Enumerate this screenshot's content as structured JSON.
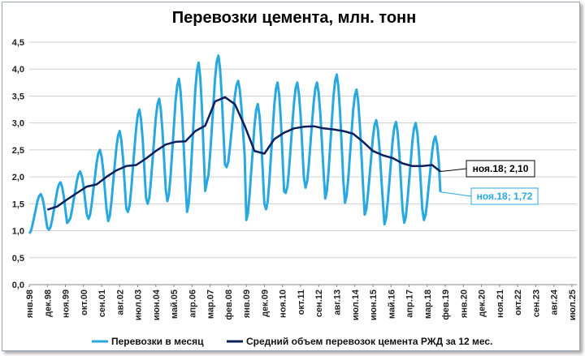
{
  "chart_data": {
    "type": "line",
    "title": "Перевозки цемента, млн. тонн",
    "ylim": [
      0,
      4.5
    ],
    "y_ticks": [
      "0,0",
      "0,5",
      "1,0",
      "1,5",
      "2,0",
      "2,5",
      "3,0",
      "3,5",
      "4,0",
      "4,5"
    ],
    "x_range": [
      "1998-01",
      "2025-10"
    ],
    "x_ticks": [
      "янв.98",
      "дек.98",
      "ноя.99",
      "окт.00",
      "сен.01",
      "авг.02",
      "июл.03",
      "июн.04",
      "май.05",
      "апр.06",
      "мар.07",
      "фев.08",
      "янв.09",
      "дек.09",
      "ноя.10",
      "окт.11",
      "сен.12",
      "авг.13",
      "июл.14",
      "июн.15",
      "май.16",
      "апр.17",
      "мар.18",
      "фев.19",
      "янв.20",
      "дек.20",
      "ноя.21",
      "окт.22",
      "сен.23",
      "авг.24",
      "июл.25"
    ],
    "grid": true,
    "legend_position": "bottom",
    "colors": {
      "monthly": "#29a8e0",
      "average": "#0b1f5c",
      "grid": "#d0d0d0"
    },
    "series": [
      {
        "name": "Перевозки в месяц",
        "monthly_peak_trough": {
          "1998": [
            1.68,
            0.95
          ],
          "1999": [
            1.9,
            1.02
          ],
          "2000": [
            2.1,
            1.18
          ],
          "2001": [
            2.5,
            1.22
          ],
          "2002": [
            2.85,
            1.18
          ],
          "2003": [
            3.25,
            1.35
          ],
          "2004": [
            3.45,
            1.5
          ],
          "2005": [
            3.82,
            1.55
          ],
          "2006": [
            4.12,
            1.35
          ],
          "2007": [
            4.25,
            1.9
          ],
          "2008": [
            3.78,
            2.18
          ],
          "2009": [
            3.35,
            1.2
          ],
          "2010": [
            3.75,
            1.4
          ],
          "2011": [
            3.75,
            1.7
          ],
          "2012": [
            3.75,
            1.8
          ],
          "2013": [
            3.9,
            1.6
          ],
          "2014": [
            3.62,
            1.52
          ],
          "2015": [
            3.05,
            1.3
          ],
          "2016": [
            3.02,
            1.12
          ],
          "2017": [
            3.0,
            1.15
          ],
          "2018": [
            2.75,
            1.2
          ]
        },
        "last": {
          "date": "2018-11",
          "value": 1.72
        }
      },
      {
        "name": "Средний объем перевозок цемента РЖД за 12 мес.",
        "x": [
          "1998-12",
          "1999-06",
          "1999-12",
          "2000-06",
          "2000-12",
          "2001-06",
          "2001-12",
          "2002-06",
          "2002-12",
          "2003-06",
          "2003-12",
          "2004-06",
          "2004-12",
          "2005-06",
          "2005-12",
          "2006-06",
          "2006-12",
          "2007-06",
          "2007-12",
          "2008-06",
          "2008-12",
          "2009-06",
          "2009-12",
          "2010-06",
          "2010-12",
          "2011-06",
          "2011-12",
          "2012-06",
          "2012-12",
          "2013-06",
          "2013-12",
          "2014-06",
          "2014-12",
          "2015-06",
          "2015-12",
          "2016-06",
          "2016-12",
          "2017-06",
          "2017-12",
          "2018-06",
          "2018-11"
        ],
        "y": [
          1.39,
          1.45,
          1.58,
          1.7,
          1.82,
          1.86,
          2.0,
          2.12,
          2.2,
          2.22,
          2.34,
          2.48,
          2.6,
          2.65,
          2.66,
          2.85,
          2.95,
          3.4,
          3.48,
          3.35,
          2.95,
          2.48,
          2.43,
          2.7,
          2.82,
          2.9,
          2.93,
          2.94,
          2.9,
          2.88,
          2.85,
          2.8,
          2.65,
          2.48,
          2.4,
          2.35,
          2.25,
          2.2,
          2.2,
          2.22,
          2.1
        ]
      }
    ],
    "annotations": [
      {
        "text": "ноя.18; 2,10",
        "series": 1,
        "date": "2018-11",
        "value": 2.1
      },
      {
        "text": "ноя.18; 1,72",
        "series": 0,
        "date": "2018-11",
        "value": 1.72
      }
    ]
  }
}
